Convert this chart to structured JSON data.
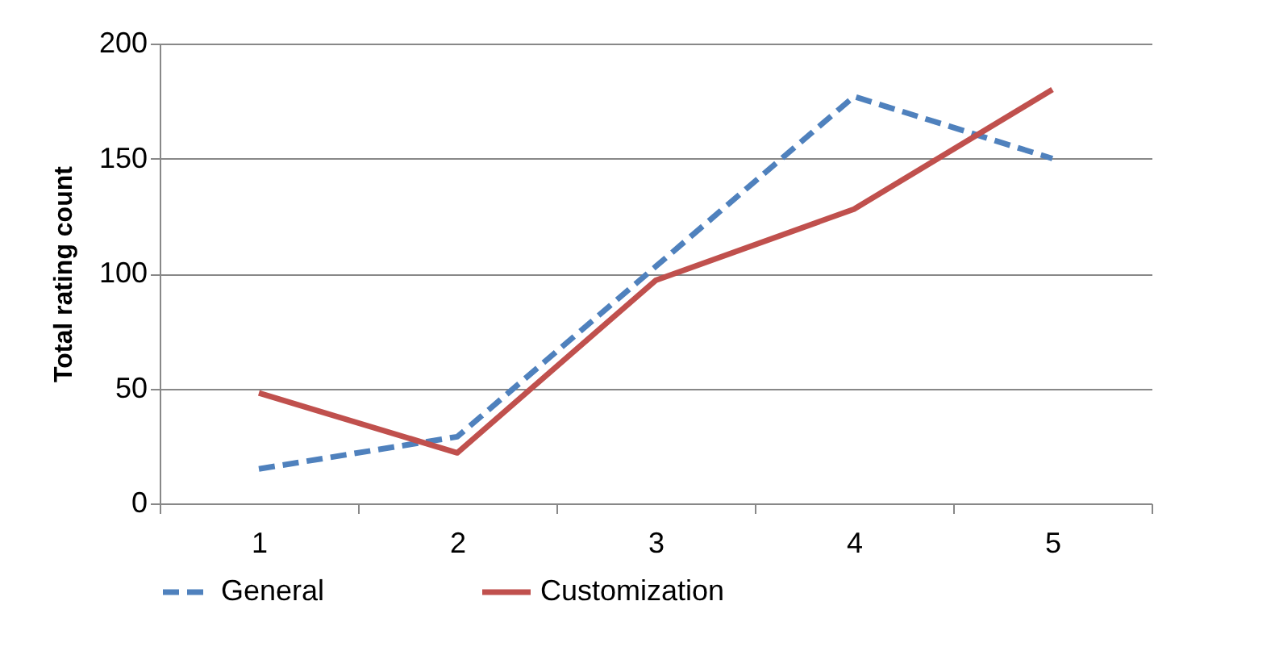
{
  "chart_data": {
    "type": "line",
    "ylabel": "Total rating count",
    "categories": [
      "1",
      "2",
      "3",
      "4",
      "5"
    ],
    "series": [
      {
        "name": "General",
        "color": "#4f81bd",
        "line_style": "dashed",
        "values": [
          15,
          29,
          103,
          177,
          150
        ]
      },
      {
        "name": "Customization",
        "color": "#c0504d",
        "line_style": "solid",
        "values": [
          48,
          22,
          97,
          128,
          180
        ]
      }
    ],
    "ylim": [
      0,
      200
    ],
    "yticks": [
      0,
      50,
      100,
      150,
      200
    ],
    "grid": "y",
    "legend": "bottom"
  }
}
